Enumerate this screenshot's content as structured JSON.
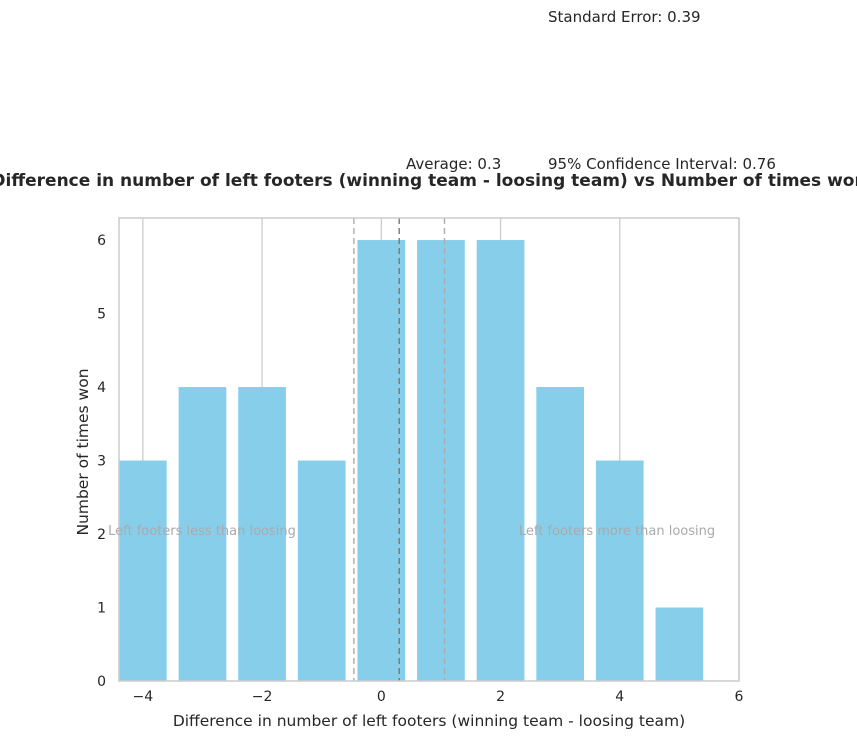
{
  "chart_data": {
    "type": "bar",
    "title": "Difference in number of left footers (winning team - loosing team) vs Number of times won",
    "xlabel": "Difference in number of left footers (winning team - loosing team)",
    "ylabel": "Number of times won",
    "x": [
      -4,
      -3,
      -2,
      -1,
      0,
      1,
      2,
      3,
      4,
      5
    ],
    "values": [
      3,
      4,
      4,
      3,
      6,
      6,
      6,
      4,
      3,
      1
    ],
    "xlim": [
      -4.4,
      6
    ],
    "ylim": [
      0,
      6.3
    ],
    "x_ticks": [
      -4,
      -2,
      0,
      2,
      4,
      6
    ],
    "x_tick_labels": [
      "−4",
      "−2",
      "0",
      "2",
      "4",
      "6"
    ],
    "y_ticks": [
      0,
      1,
      2,
      3,
      4,
      5,
      6
    ],
    "y_tick_labels": [
      "0",
      "1",
      "2",
      "3",
      "4",
      "5",
      "6"
    ],
    "bar_color": "#87CEEB",
    "grid": true,
    "grid_axis": "x",
    "average": 0.3,
    "confidence_interval": 0.76,
    "lines": [
      {
        "x": 0.3,
        "style": "dashed",
        "color": "#777777"
      },
      {
        "x": -0.46,
        "style": "dashed",
        "color": "#aaaaaa"
      },
      {
        "x": 1.06,
        "style": "dashed",
        "color": "#aaaaaa"
      }
    ],
    "stats": {
      "standard_error": "Standard Error: 0.39",
      "average": "Average: 0.3",
      "confidence_interval": "95% Confidence Interval: 0.76"
    },
    "annotations": {
      "left": "Left footers less than loosing",
      "right": "Left footers more than loosing"
    }
  }
}
